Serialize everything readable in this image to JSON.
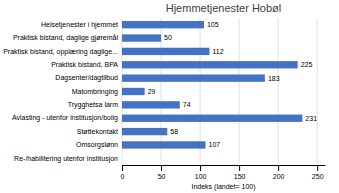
{
  "chart_data": {
    "type": "bar",
    "orientation": "horizontal",
    "title": "Hjemmetjenester Hobøl",
    "xlabel": "Indeks  (landet= 100)",
    "categories": [
      "Helsetjenester i hjemmet",
      "Praktisk bistand, daglige gjøremål",
      "Praktisk bistand, opplæring daglige...",
      "Praktisk bistand, BPA",
      "Dagsenter/dagtilbud",
      "Matombringing",
      "Trygghetsa larm",
      "Avlasting - utenfor institusjon/bolig",
      "Støttekontakt",
      "Omsorgslønn",
      "Re-/habilitering utenfor institusjon"
    ],
    "values": [
      105,
      50,
      112,
      225,
      183,
      29,
      74,
      231,
      58,
      107,
      0
    ],
    "value_labels": [
      "105",
      "50",
      "112",
      "225",
      "183",
      "29",
      "74",
      "231",
      "58",
      "107",
      null
    ],
    "color": "#4472c4",
    "xlim": [
      0,
      260
    ],
    "xticks": [
      0,
      50,
      100,
      150,
      200,
      250
    ],
    "grid": true,
    "data_labels": true
  }
}
